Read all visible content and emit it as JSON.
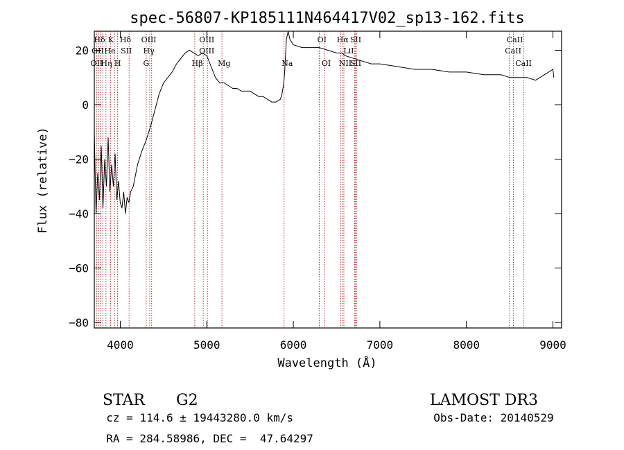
{
  "chart_data": {
    "type": "line",
    "title": "spec-56807-KP185111N464417V02_sp13-162.fits",
    "xlabel": "Wavelength (Å)",
    "ylabel": "Flux (relative)",
    "xlim": [
      3700,
      9100
    ],
    "ylim": [
      -82,
      27
    ],
    "xticks": [
      4000,
      5000,
      6000,
      7000,
      8000,
      9000
    ],
    "yticks": [
      -80,
      -60,
      -40,
      -20,
      0,
      20
    ],
    "x": [
      3700,
      3720,
      3740,
      3760,
      3780,
      3800,
      3820,
      3840,
      3860,
      3880,
      3900,
      3920,
      3940,
      3960,
      3980,
      4000,
      4020,
      4040,
      4060,
      4080,
      4100,
      4120,
      4150,
      4200,
      4250,
      4300,
      4350,
      4400,
      4450,
      4500,
      4550,
      4600,
      4650,
      4700,
      4750,
      4800,
      4850,
      4900,
      4950,
      5000,
      5050,
      5100,
      5150,
      5200,
      5250,
      5300,
      5350,
      5400,
      5450,
      5500,
      5550,
      5600,
      5650,
      5700,
      5750,
      5800,
      5850,
      5870,
      5890,
      5900,
      5910,
      5920,
      5940,
      5960,
      6000,
      6100,
      6200,
      6300,
      6400,
      6500,
      6560,
      6600,
      6700,
      6800,
      6900,
      7000,
      7200,
      7400,
      7600,
      7800,
      8000,
      8200,
      8400,
      8500,
      8600,
      8700,
      8800,
      8900,
      8950,
      9000,
      9010
    ],
    "y": [
      -10,
      -40,
      -25,
      -35,
      -15,
      -38,
      -20,
      -30,
      -12,
      -32,
      -22,
      -30,
      -18,
      -35,
      -28,
      -36,
      -38,
      -32,
      -40,
      -34,
      -36,
      -32,
      -30,
      -22,
      -17,
      -13,
      -8,
      -2,
      4,
      8,
      10,
      12,
      15,
      17,
      19,
      20,
      19,
      18,
      19,
      18,
      14,
      10,
      8,
      8,
      7,
      6,
      6,
      5,
      5,
      5,
      4,
      3,
      3,
      2,
      1,
      1,
      2,
      4,
      8,
      12,
      18,
      24,
      27,
      24,
      22,
      21,
      21,
      21,
      20,
      19,
      19,
      18,
      17,
      16,
      15,
      15,
      14,
      13,
      13,
      12,
      12,
      11,
      11,
      10,
      10,
      10,
      9,
      11,
      12,
      13,
      10
    ],
    "lines": {
      "upper": [
        "Hδ",
        "K",
        "Hδ",
        "OIII",
        "OIII",
        "OI",
        "Hα",
        "SII",
        "CaII"
      ],
      "upper2": [
        "OII",
        "He",
        "SII",
        "Hγ",
        "OIII",
        "LiI",
        "CaII"
      ],
      "upper3": [
        "OII",
        "Hη",
        "H",
        "G",
        "Hβ",
        "Mg",
        "Na",
        "OI",
        "NII",
        "SII",
        "CaII"
      ]
    },
    "object_class": "STAR",
    "subclass": "G2",
    "survey": "LAMOST DR3",
    "cz": "cz = 114.6 ± 19443280.0 km/s",
    "obs_date": "Obs-Date: 20140529",
    "radec": "RA = 284.58986, DEC =  47.64297"
  }
}
